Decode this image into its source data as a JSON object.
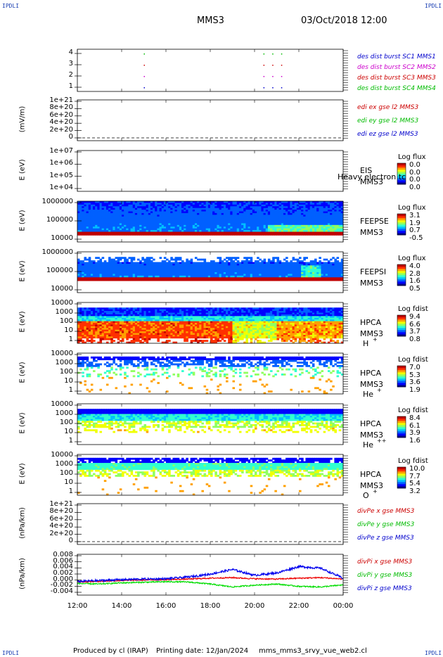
{
  "header": {
    "corner_tl": "IPDLI",
    "corner_tr": "IPDLI",
    "corner_bl": "IPDLI",
    "corner_br": "IPDLI",
    "spacecraft": "MMS3",
    "datetime": "03/Oct/2018 12:00"
  },
  "footer": {
    "produced_by": "Produced by cl (IRAP)",
    "printing_date": "Printing date: 12/Jan/2024",
    "file": "mms_mms3_srvy_vue_web2.cl"
  },
  "chart_data": {
    "type": "line",
    "x_axis": {
      "ticks": [
        "12:00",
        "14:00",
        "16:00",
        "18:00",
        "20:00",
        "22:00",
        "00:00"
      ],
      "range_hours": [
        12,
        24
      ]
    },
    "panels": [
      {
        "id": "burst",
        "ylabel": "",
        "yticks": [
          "4",
          "3",
          "2",
          "1"
        ],
        "legend": [
          {
            "label": "des dist burst SC1 MMS1",
            "color": "#0000cc"
          },
          {
            "label": "des dist burst SC2 MMS2",
            "color": "#cc00cc"
          },
          {
            "label": "des dist burst SC3 MMS3",
            "color": "#cc0000"
          },
          {
            "label": "des dist burst SC4 MMS4",
            "color": "#00bb00"
          }
        ],
        "markers": [
          {
            "sc": 4,
            "t": [
              15.0,
              20.4,
              20.8,
              21.2
            ]
          },
          {
            "sc": 3,
            "t": [
              15.0,
              20.4,
              20.8,
              21.2
            ]
          },
          {
            "sc": 2,
            "t": [
              15.0,
              20.4,
              20.8,
              21.2
            ]
          },
          {
            "sc": 1,
            "t": [
              15.0,
              20.4,
              20.8,
              21.2
            ]
          }
        ]
      },
      {
        "id": "edi",
        "ylabel": "(mV/m)",
        "yticks": [
          "1e+21",
          "8e+20",
          "6e+20",
          "4e+20",
          "2e+20",
          "0"
        ],
        "legend": [
          {
            "label": "edi ex gse l2 MMS3",
            "color": "#cc0000"
          },
          {
            "label": "edi ey gse l2 MMS3",
            "color": "#00bb00"
          },
          {
            "label": "edi ez gse l2 MMS3",
            "color": "#0000cc"
          }
        ]
      },
      {
        "id": "eis",
        "ylabel": "E (eV)",
        "yticks": [
          "1e+07",
          "1e+06",
          "1e+05",
          "1e+04"
        ],
        "right_labels": [
          "EIS",
          "MMS3"
        ],
        "overlay_label": "Heavy electron tc",
        "cb_title": "Log flux",
        "cb_values": [
          "0.0",
          "0.0",
          "0.0",
          "0.0"
        ]
      },
      {
        "id": "feepse",
        "ylabel": "E (eV)",
        "yticks": [
          "1000000",
          "100000",
          "10000"
        ],
        "right_labels": [
          "FEEPSE",
          "MMS3"
        ],
        "cb_title": "Log flux",
        "cb_values": [
          "3.1",
          "1.9",
          "0.7",
          "-0.5"
        ]
      },
      {
        "id": "feepsi",
        "ylabel": "E (eV)",
        "yticks": [
          "1000000",
          "100000",
          "10000"
        ],
        "right_labels": [
          "FEEPSI",
          "MMS3"
        ],
        "cb_title": "Log flux",
        "cb_values": [
          "4.0",
          "2.8",
          "1.6",
          "0.5"
        ]
      },
      {
        "id": "hpca_h",
        "ylabel": "E (eV)",
        "yticks": [
          "10000",
          "1000",
          "100",
          "10",
          "1"
        ],
        "right_labels": [
          "HPCA",
          "MMS3"
        ],
        "species": "H",
        "species_sup": "+",
        "cb_title": "Log fdist",
        "cb_values": [
          "9.4",
          "6.6",
          "3.7",
          "0.8"
        ]
      },
      {
        "id": "hpca_he",
        "ylabel": "E (eV)",
        "yticks": [
          "10000",
          "1000",
          "100",
          "10",
          "1"
        ],
        "right_labels": [
          "HPCA",
          "MMS3"
        ],
        "species": "He",
        "species_sup": "+",
        "cb_title": "Log fdist",
        "cb_values": [
          "7.0",
          "5.3",
          "3.6",
          "1.9"
        ]
      },
      {
        "id": "hpca_hepp",
        "ylabel": "E (eV)",
        "yticks": [
          "10000",
          "1000",
          "100",
          "10",
          "1"
        ],
        "right_labels": [
          "HPCA",
          "MMS3"
        ],
        "species": "He",
        "species_sup": "++",
        "cb_title": "Log fdist",
        "cb_values": [
          "8.4",
          "6.1",
          "3.9",
          "1.6"
        ]
      },
      {
        "id": "hpca_o",
        "ylabel": "E (eV)",
        "yticks": [
          "10000",
          "1000",
          "100",
          "10",
          "1"
        ],
        "right_labels": [
          "HPCA",
          "MMS3"
        ],
        "species": "O",
        "species_sup": "+",
        "cb_title": "Log fdist",
        "cb_values": [
          "10.0",
          "7.7",
          "5.4",
          "3.2"
        ]
      },
      {
        "id": "divpe",
        "ylabel": "(nPa/km)",
        "yticks": [
          "1e+21",
          "8e+20",
          "6e+20",
          "4e+20",
          "2e+20",
          "0"
        ],
        "legend": [
          {
            "label": "divPe x gse MMS3",
            "color": "#cc0000"
          },
          {
            "label": "divPe y gse MMS3",
            "color": "#00bb00"
          },
          {
            "label": "divPe z gse MMS3",
            "color": "#0000cc"
          }
        ]
      },
      {
        "id": "divpi",
        "ylabel": "(nPa/km)",
        "yticks": [
          "0.008",
          "0.006",
          "0.004",
          "0.002",
          "0.000",
          "-0.002",
          "-0.004"
        ],
        "ylim": [
          -0.005,
          0.009
        ],
        "legend": [
          {
            "label": "divPi x gse MMS3",
            "color": "#cc0000"
          },
          {
            "label": "divPi y gse MMS3",
            "color": "#00bb00"
          },
          {
            "label": "divPi z gse MMS3",
            "color": "#0000cc"
          }
        ],
        "series": [
          {
            "name": "divPi x gse MMS3",
            "color": "#ee0000",
            "t": [
              12,
              13,
              14,
              15,
              16,
              17,
              18,
              19,
              20,
              21,
              22,
              23,
              24
            ],
            "values": [
              -0.0005,
              -0.0003,
              0.0,
              0.0002,
              0.0003,
              0.0005,
              0.0008,
              0.001,
              0.0006,
              0.0005,
              0.0008,
              0.001,
              0.0005
            ]
          },
          {
            "name": "divPi y gse MMS3",
            "color": "#00dd00",
            "t": [
              12,
              13,
              14,
              15,
              16,
              17,
              18,
              19,
              20,
              21,
              22,
              23,
              24
            ],
            "values": [
              -0.001,
              -0.0012,
              -0.0008,
              -0.0006,
              -0.0004,
              -0.0005,
              -0.0012,
              -0.0022,
              -0.0016,
              -0.0012,
              -0.002,
              -0.0022,
              -0.0015
            ]
          },
          {
            "name": "divPi z gse MMS3",
            "color": "#0000ee",
            "t": [
              12,
              13,
              14,
              15,
              16,
              17,
              18,
              19,
              20,
              21,
              22,
              23,
              24
            ],
            "values": [
              -0.0003,
              0.0,
              0.0003,
              0.0005,
              0.0006,
              0.0012,
              0.0022,
              0.0038,
              0.0018,
              0.0026,
              0.0048,
              0.0042,
              0.0008
            ]
          }
        ]
      }
    ]
  }
}
